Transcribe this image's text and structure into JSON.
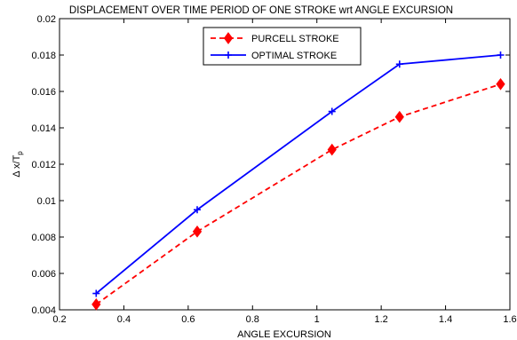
{
  "chart_data": {
    "type": "line",
    "title": "DISPLACEMENT OVER TIME PERIOD OF ONE STROKE wrt ANGLE EXCURSION",
    "xlabel": "ANGLE EXCURSION",
    "ylabel_main": "Δ x/T",
    "ylabel_sub": "p",
    "xlim": [
      0.2,
      1.6
    ],
    "ylim": [
      0.004,
      0.02
    ],
    "xticks": [
      0.2,
      0.4,
      0.6,
      0.8,
      1,
      1.2,
      1.4,
      1.6
    ],
    "xtick_labels": [
      "0.2",
      "0.4",
      "0.6",
      "0.8",
      "1",
      "1.2",
      "1.4",
      "1.6"
    ],
    "yticks": [
      0.004,
      0.006,
      0.008,
      0.01,
      0.012,
      0.014,
      0.016,
      0.018,
      0.02
    ],
    "ytick_labels": [
      "0.004",
      "0.006",
      "0.008",
      "0.01",
      "0.012",
      "0.014",
      "0.016",
      "0.018",
      "0.02"
    ],
    "grid": false,
    "legend_position": "top-center",
    "series": [
      {
        "name": "PURCELL STROKE",
        "color": "#ff0000",
        "line_style": "dashed",
        "marker": "diamond",
        "x": [
          0.314,
          0.628,
          1.047,
          1.257,
          1.571
        ],
        "y": [
          0.0043,
          0.0083,
          0.0128,
          0.0146,
          0.0164
        ]
      },
      {
        "name": "OPTIMAL STROKE",
        "color": "#0000ff",
        "line_style": "solid",
        "marker": "plus",
        "x": [
          0.314,
          0.628,
          1.047,
          1.257,
          1.571
        ],
        "y": [
          0.0049,
          0.0095,
          0.0149,
          0.0175,
          0.018
        ]
      }
    ]
  }
}
